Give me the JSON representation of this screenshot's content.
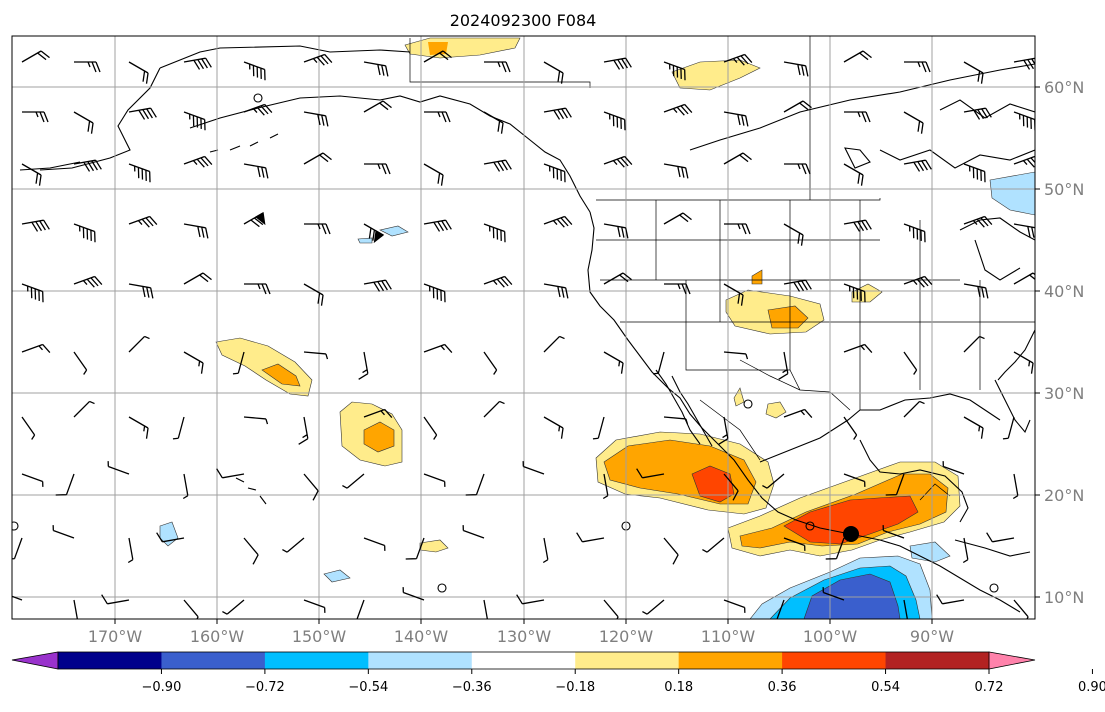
{
  "title": "2024092300 F084",
  "map": {
    "lat_labels": [
      "60°N",
      "50°N",
      "40°N",
      "30°N",
      "20°N",
      "10°N"
    ],
    "lon_labels": [
      "170°W",
      "160°W",
      "150°W",
      "140°W",
      "130°W",
      "120°W",
      "110°W",
      "100°W",
      "90°W"
    ]
  },
  "colorbar": {
    "colors": [
      "#9932cc",
      "#00008b",
      "#3a5fcd",
      "#00bfff",
      "#b0e2ff",
      "#ffffff",
      "#ffec8b",
      "#ffa500",
      "#ff4500",
      "#b22222",
      "#ff82ab"
    ],
    "labels": [
      "−0.90",
      "−0.72",
      "−0.54",
      "−0.36",
      "−0.18",
      "0.18",
      "0.36",
      "0.54",
      "0.72",
      "0.90"
    ]
  }
}
